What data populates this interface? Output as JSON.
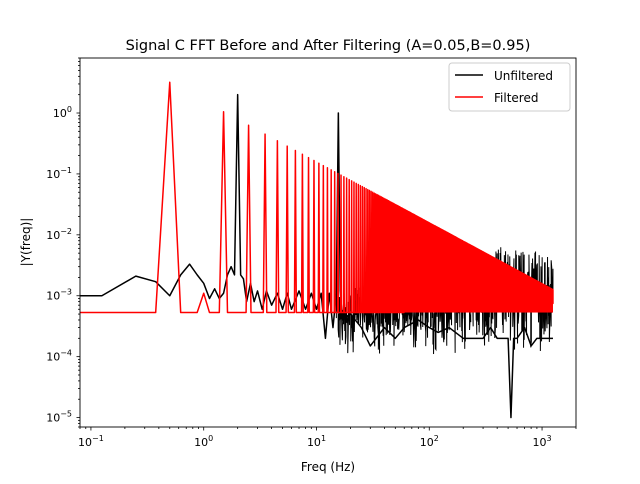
{
  "chart_data": {
    "type": "line",
    "title": "Signal C FFT Before and After Filtering (A=0.05,B=0.95)",
    "xlabel": "Freq (Hz)",
    "ylabel": "|Y(freq)|",
    "xscale": "log",
    "yscale": "log",
    "xlim": [
      0.08,
      2000
    ],
    "ylim": [
      7e-06,
      8
    ],
    "x_ticks": [
      {
        "value": 0.1,
        "base": "10",
        "exp": "−1"
      },
      {
        "value": 1,
        "base": "10",
        "exp": "0"
      },
      {
        "value": 10,
        "base": "10",
        "exp": "1"
      },
      {
        "value": 100,
        "base": "10",
        "exp": "2"
      },
      {
        "value": 1000,
        "base": "10",
        "exp": "3"
      }
    ],
    "y_ticks": [
      {
        "value": 1e-05,
        "base": "10",
        "exp": "−5"
      },
      {
        "value": 0.0001,
        "base": "10",
        "exp": "−4"
      },
      {
        "value": 0.001,
        "base": "10",
        "exp": "−3"
      },
      {
        "value": 0.01,
        "base": "10",
        "exp": "−2"
      },
      {
        "value": 0.1,
        "base": "10",
        "exp": "−1"
      },
      {
        "value": 1,
        "base": "10",
        "exp": "0"
      }
    ],
    "grid": false,
    "legend_position": "top-right",
    "series": [
      {
        "name": "Unfiltered",
        "color": "#000000",
        "x": [
          0.08,
          0.125,
          0.25,
          0.375,
          0.5,
          0.625,
          0.75,
          0.875,
          1.0,
          1.125,
          1.25,
          1.375,
          1.5,
          1.625,
          1.75,
          1.875,
          2.0,
          2.125,
          2.25,
          2.4,
          2.6,
          2.8,
          3.0,
          3.3,
          3.6,
          4.0,
          4.5,
          5.0,
          5.5,
          6.0,
          7.0,
          8.0,
          9.0,
          10.0,
          11.0,
          12.0,
          13.0,
          14.0,
          15.0,
          15.625,
          16.25,
          17.0,
          20.0,
          25.0,
          30.0,
          40.0,
          50.0,
          60.0,
          80.0,
          100.0,
          120.0,
          150.0,
          200.0,
          250.0,
          300.0,
          350.0,
          400.0,
          450.0,
          500.0,
          530.0,
          560.0,
          600.0,
          700.0,
          800.0,
          900.0,
          1000.0,
          1100.0,
          1250.0
        ],
        "values": [
          0.001,
          0.001,
          0.0021,
          0.0017,
          0.001,
          0.0022,
          0.0033,
          0.0022,
          0.0016,
          0.0009,
          0.0013,
          0.0009,
          0.0011,
          0.0022,
          0.003,
          0.0022,
          2.0,
          0.0022,
          0.0019,
          0.0008,
          0.0016,
          0.0008,
          0.0012,
          0.0006,
          0.0012,
          0.0007,
          0.0011,
          0.0006,
          0.0011,
          0.0006,
          0.0012,
          0.0006,
          0.0011,
          0.0006,
          0.0011,
          0.0002,
          0.0011,
          0.0003,
          0.0011,
          1.0,
          0.0012,
          0.0004,
          0.0005,
          0.0003,
          0.00015,
          0.0003,
          0.0002,
          0.0003,
          0.0004,
          0.0003,
          0.00025,
          0.0003,
          0.0002,
          0.0002,
          0.0002,
          0.0003,
          0.0002,
          0.0002,
          0.0002,
          1e-05,
          0.0002,
          0.0002,
          0.0003,
          0.00015,
          0.0002,
          0.0002,
          0.0002,
          0.0002
        ],
        "envelope_top": {
          "x": [
            15.0,
            30.0,
            60.0,
            100.0,
            150.0,
            200.0,
            300.0,
            400.0,
            600.0,
            800.0,
            1000.0,
            1250.0
          ],
          "values": [
            0.0013,
            0.0014,
            0.0015,
            0.0017,
            0.0021,
            0.0034,
            0.006,
            0.007,
            0.0055,
            0.0065,
            0.006,
            0.004
          ]
        }
      },
      {
        "name": "Filtered",
        "color": "#ff0000",
        "x": [
          0.08,
          0.375,
          0.5,
          0.625,
          0.75,
          0.875,
          1.0,
          1.125,
          1.25,
          1.375
        ],
        "values": [
          0.00053,
          0.00053,
          3.2,
          0.00053,
          0.00053,
          0.00053,
          0.0011,
          0.00053,
          0.00053,
          0.00053
        ],
        "harmonics": {
          "fundamental_hz": 0.5,
          "first_harmonic": 3,
          "peak_amplitude_at_1_5hz": 1.05,
          "decay_exponent": 1,
          "floor": 0.00053,
          "max_freq_hz": 1250,
          "floor_top_band_start_hz": 60,
          "floor_top_band_value": 0.00075
        }
      }
    ]
  }
}
